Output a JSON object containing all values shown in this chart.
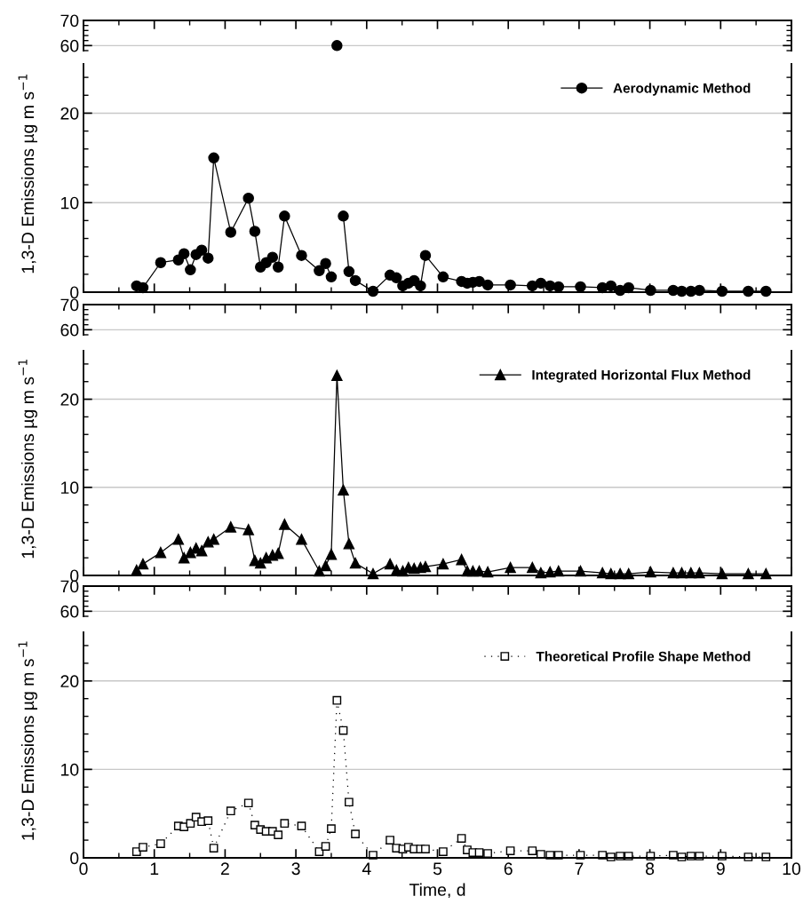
{
  "chart_data": [
    {
      "type": "line",
      "xlim": [
        0,
        10
      ],
      "xticks": [
        0,
        1,
        2,
        3,
        4,
        5,
        6,
        7,
        8,
        9,
        10
      ],
      "ylim": [
        58,
        70
      ],
      "yticks": [
        60,
        70
      ],
      "grid": "y",
      "tick_labels": "y",
      "marker": "circle",
      "line_style": "solid",
      "series": [
        {
          "color": "#000000",
          "x": [
            3.58
          ],
          "values": [
            60
          ]
        }
      ]
    },
    {
      "type": "line",
      "xlim": [
        0,
        10
      ],
      "xticks": [
        0,
        1,
        2,
        3,
        4,
        5,
        6,
        7,
        8,
        9,
        10
      ],
      "ylim": [
        0,
        25.5
      ],
      "yticks": [
        0,
        10,
        20
      ],
      "grid": "y",
      "tick_labels": "y",
      "marker": "circle",
      "line_style": "solid",
      "legend": "top right",
      "ylabel": "1,3-D Emissions µg m s$^{−1}$",
      "x": [
        0.75,
        0.84,
        1.09,
        1.34,
        1.42,
        1.51,
        1.59,
        1.67,
        1.76,
        1.84,
        2.08,
        2.33,
        2.42,
        2.5,
        2.58,
        2.67,
        2.75,
        2.84,
        3.08,
        3.33,
        3.42,
        3.5,
        3.58,
        3.67,
        3.75,
        3.84,
        4.09,
        4.33,
        4.42,
        4.51,
        4.59,
        4.67,
        4.76,
        4.83,
        5.08,
        5.34,
        5.42,
        5.5,
        5.59,
        5.71,
        6.03,
        6.34,
        6.46,
        6.59,
        6.71,
        7.02,
        7.33,
        7.45,
        7.58,
        7.7,
        8.01,
        8.33,
        8.45,
        8.58,
        8.7,
        9.02,
        9.39,
        9.64
      ],
      "series": [
        {
          "name": "Aerodynamic Method",
          "color": "#000000",
          "values": [
            0.7,
            0.5,
            3.3,
            3.6,
            4.3,
            2.5,
            4.2,
            4.7,
            3.8,
            15.0,
            6.7,
            10.5,
            6.8,
            2.8,
            3.3,
            3.9,
            2.8,
            8.5,
            4.1,
            2.4,
            3.2,
            1.7,
            null,
            8.5,
            2.3,
            1.3,
            0.1,
            1.9,
            1.6,
            0.7,
            1.0,
            1.3,
            0.7,
            4.1,
            1.7,
            1.2,
            1.0,
            1.1,
            1.2,
            0.8,
            0.8,
            0.7,
            1.0,
            0.7,
            0.6,
            0.6,
            0.5,
            0.7,
            0.2,
            0.5,
            0.2,
            0.2,
            0.1,
            0.1,
            0.2,
            0.1,
            0.1,
            0.1
          ]
        }
      ]
    },
    {
      "type": "line",
      "xlim": [
        0,
        10
      ],
      "xticks": [
        0,
        1,
        2,
        3,
        4,
        5,
        6,
        7,
        8,
        9,
        10
      ],
      "ylim": [
        58,
        70
      ],
      "yticks": [
        60,
        70
      ],
      "grid": "y",
      "tick_labels": "y"
    },
    {
      "type": "line",
      "xlim": [
        0,
        10
      ],
      "xticks": [
        0,
        1,
        2,
        3,
        4,
        5,
        6,
        7,
        8,
        9,
        10
      ],
      "ylim": [
        0,
        25.5
      ],
      "yticks": [
        0,
        10,
        20
      ],
      "grid": "y",
      "tick_labels": "y",
      "marker": "triangle",
      "line_style": "solid",
      "legend": "top right",
      "ylabel": "1,3-D Emissions µg m s$^{−1}$",
      "x": [
        0.75,
        0.84,
        1.09,
        1.34,
        1.42,
        1.51,
        1.59,
        1.67,
        1.76,
        1.84,
        2.08,
        2.33,
        2.42,
        2.5,
        2.58,
        2.67,
        2.75,
        2.84,
        3.08,
        3.33,
        3.42,
        3.5,
        3.58,
        3.67,
        3.75,
        3.84,
        4.09,
        4.33,
        4.42,
        4.51,
        4.59,
        4.67,
        4.76,
        4.83,
        5.08,
        5.34,
        5.42,
        5.5,
        5.59,
        5.71,
        6.03,
        6.34,
        6.46,
        6.59,
        6.71,
        7.02,
        7.33,
        7.45,
        7.58,
        7.7,
        8.01,
        8.33,
        8.45,
        8.58,
        8.7,
        9.02,
        9.39,
        9.64
      ],
      "series": [
        {
          "name": "Integrated Horizontal Flux Method",
          "color": "#000000",
          "values": [
            0.6,
            1.3,
            2.6,
            4.1,
            2.0,
            2.6,
            3.1,
            2.8,
            3.8,
            4.1,
            5.5,
            5.2,
            1.7,
            1.4,
            2.0,
            2.3,
            2.5,
            5.8,
            4.1,
            0.5,
            1.1,
            2.4,
            22.7,
            9.7,
            3.6,
            1.4,
            0.2,
            1.3,
            0.6,
            0.5,
            0.9,
            0.8,
            0.9,
            1.0,
            1.3,
            1.8,
            0.5,
            0.5,
            0.5,
            0.4,
            0.9,
            0.9,
            0.3,
            0.4,
            0.5,
            0.5,
            0.3,
            0.2,
            0.2,
            0.2,
            0.4,
            0.3,
            0.3,
            0.3,
            0.3,
            0.2,
            0.2,
            0.2
          ]
        }
      ]
    },
    {
      "type": "line",
      "xlim": [
        0,
        10
      ],
      "xticks": [
        0,
        1,
        2,
        3,
        4,
        5,
        6,
        7,
        8,
        9,
        10
      ],
      "ylim": [
        58,
        70
      ],
      "yticks": [
        60,
        70
      ],
      "grid": "y",
      "tick_labels": "y"
    },
    {
      "type": "line",
      "xlim": [
        0,
        10
      ],
      "xticks": [
        0,
        1,
        2,
        3,
        4,
        5,
        6,
        7,
        8,
        9,
        10
      ],
      "ylim": [
        0,
        25.5
      ],
      "yticks": [
        0,
        10,
        20
      ],
      "grid": "y",
      "marker": "square",
      "line_style": "dotted",
      "legend": "top right",
      "ylabel": "1,3-D Emissions µg m s$^{−1}$",
      "xlabel": "Time, d",
      "x": [
        0.75,
        0.84,
        1.09,
        1.34,
        1.42,
        1.51,
        1.59,
        1.67,
        1.76,
        1.84,
        2.08,
        2.33,
        2.42,
        2.5,
        2.58,
        2.67,
        2.75,
        2.84,
        3.08,
        3.33,
        3.42,
        3.5,
        3.58,
        3.67,
        3.75,
        3.84,
        4.09,
        4.33,
        4.42,
        4.51,
        4.59,
        4.67,
        4.76,
        4.83,
        5.08,
        5.34,
        5.42,
        5.5,
        5.59,
        5.71,
        6.03,
        6.34,
        6.46,
        6.59,
        6.71,
        7.02,
        7.33,
        7.45,
        7.58,
        7.7,
        8.01,
        8.33,
        8.45,
        8.58,
        8.7,
        9.02,
        9.39,
        9.64
      ],
      "series": [
        {
          "name": "Theoretical Profile Shape Method",
          "color": "#000000",
          "values": [
            0.7,
            1.2,
            1.6,
            3.6,
            3.5,
            3.9,
            4.6,
            4.1,
            4.2,
            1.1,
            5.3,
            6.2,
            3.7,
            3.2,
            3.0,
            3.0,
            2.6,
            3.9,
            3.6,
            0.7,
            1.3,
            3.3,
            17.8,
            14.4,
            6.3,
            2.7,
            0.3,
            2.0,
            1.1,
            1.0,
            1.2,
            1.0,
            1.0,
            1.0,
            0.7,
            2.2,
            0.9,
            0.6,
            0.6,
            0.5,
            0.8,
            0.8,
            0.4,
            0.3,
            0.3,
            0.3,
            0.3,
            0.1,
            0.2,
            0.2,
            0.2,
            0.3,
            0.1,
            0.2,
            0.2,
            0.2,
            0.1,
            0.1
          ]
        }
      ]
    }
  ]
}
